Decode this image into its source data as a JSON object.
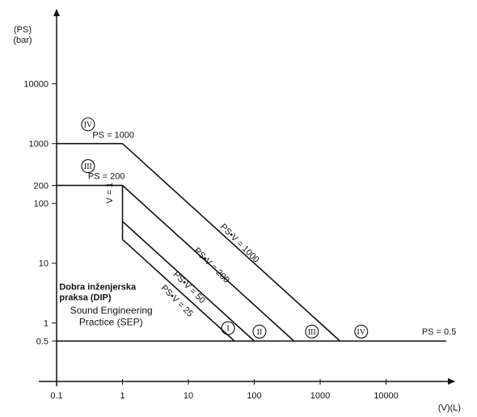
{
  "chart_data": {
    "type": "line",
    "xlabel": "(V)(L)",
    "ylabel": [
      "(PS)",
      "(bar)"
    ],
    "x_axis": {
      "scale": "log",
      "range": [
        0.1,
        100000
      ]
    },
    "y_axis": {
      "scale": "log",
      "range": [
        0.1,
        100000
      ]
    },
    "x_ticks": [
      {
        "value": 0.1,
        "label": "0.1"
      },
      {
        "value": 1,
        "label": "1"
      },
      {
        "value": 10,
        "label": "10"
      },
      {
        "value": 100,
        "label": "100"
      },
      {
        "value": 1000,
        "label": "1000"
      },
      {
        "value": 10000,
        "label": "10000"
      }
    ],
    "y_ticks": [
      {
        "value": 0.5,
        "label": "0.5"
      },
      {
        "value": 1,
        "label": "1"
      },
      {
        "value": 10,
        "label": "10"
      },
      {
        "value": 100,
        "label": "100"
      },
      {
        "value": 200,
        "label": "200"
      },
      {
        "value": 1000,
        "label": "1000"
      },
      {
        "value": 10000,
        "label": "10000"
      }
    ],
    "series": [
      {
        "name": "PS = 0.5",
        "points": [
          [
            0.1,
            0.5
          ],
          [
            100000,
            0.5
          ]
        ]
      },
      {
        "name": "PS = 1000",
        "points": [
          [
            0.1,
            1000
          ],
          [
            1,
            1000
          ]
        ]
      },
      {
        "name": "PS = 200",
        "points": [
          [
            0.1,
            200
          ],
          [
            1,
            200
          ]
        ]
      },
      {
        "name": "PS·V = 1000",
        "points": [
          [
            1,
            1000
          ],
          [
            2000,
            0.5
          ]
        ]
      },
      {
        "name": "PS·V = 200",
        "points": [
          [
            1,
            200
          ],
          [
            400,
            0.5
          ]
        ]
      },
      {
        "name": "PS·V = 50",
        "points": [
          [
            1,
            50
          ],
          [
            100,
            0.5
          ]
        ]
      },
      {
        "name": "PS·V = 25",
        "points": [
          [
            1,
            25
          ],
          [
            50,
            0.5
          ]
        ]
      },
      {
        "name": "V = 1",
        "points": [
          [
            1,
            25
          ],
          [
            1,
            200
          ]
        ]
      }
    ],
    "line_labels": [
      {
        "text": "PS = 1000",
        "x": 0.35,
        "y": 1260
      },
      {
        "text": "PS = 200",
        "x": 0.3,
        "y": 255
      },
      {
        "text": "PS = 0.5",
        "x": 35000,
        "y": 0.64
      },
      {
        "text": "PS•V = 1000",
        "x": 30,
        "y": 40,
        "angle": 45
      },
      {
        "text": "PS•V = 200",
        "x": 12,
        "y": 16,
        "angle": 45
      },
      {
        "text": "PS•V = 50",
        "x": 5.8,
        "y": 6.4,
        "angle": 45
      },
      {
        "text": "PS•V = 25",
        "x": 3.8,
        "y": 3.8,
        "angle": 45
      },
      {
        "text": "V = 1",
        "x": 0.7,
        "y": 100,
        "angle": -90
      }
    ],
    "categories": [
      {
        "label": "IV",
        "x": 0.3,
        "y": 2100
      },
      {
        "label": "III",
        "x": 0.3,
        "y": 420
      },
      {
        "label": "I",
        "x": 40,
        "y": 0.82
      },
      {
        "label": "II",
        "x": 120,
        "y": 0.72
      },
      {
        "label": "III",
        "x": 750,
        "y": 0.72
      },
      {
        "label": "IV",
        "x": 4200,
        "y": 0.72
      }
    ],
    "annotations": [
      {
        "text": "Dobra inženjerska",
        "x": 0.11,
        "y": 3.6,
        "bold": true
      },
      {
        "text": "praksa (DIP)",
        "x": 0.11,
        "y": 2.4,
        "bold": true
      },
      {
        "text": "Sound Engineering",
        "x": 0.16,
        "y": 1.45,
        "bold": false
      },
      {
        "text": "Practice (SEP)",
        "x": 0.22,
        "y": 0.92,
        "bold": false
      }
    ]
  }
}
